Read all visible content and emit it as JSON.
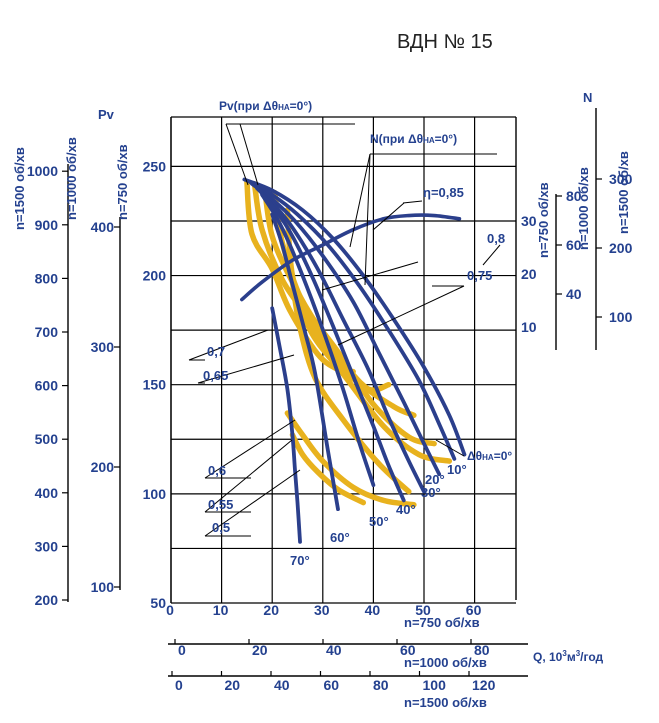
{
  "title": "ВДН № 15",
  "colors": {
    "pressure_curve": "#2b3f8c",
    "efficiency_curve": "#e8b21e",
    "text": "#24418f"
  },
  "chart_data": {
    "type": "line",
    "labels": {
      "pv": "Pv",
      "n": "N",
      "pv_curve": "Pv(при Δθ",
      "pv_curve_sub": "НА",
      "pv_curve_end": "=0°)",
      "n_curve": "N(при Δθ",
      "n_curve_sub": "НА",
      "n_curve_end": "=0°)",
      "vane_zero": "Δθ",
      "vane_zero_sub": "НА",
      "vane_zero_end": "=0°",
      "q_axis": "Q, 10",
      "q_axis_sup1": "3",
      "q_axis_mid": "м",
      "q_axis_sup2": "3",
      "q_axis_end": "/год"
    },
    "pressure_axes": [
      {
        "speed_label": "n=1500 об/хв",
        "ticks": [
          "200",
          "300",
          "400",
          "500",
          "600",
          "700",
          "800",
          "900",
          "1000"
        ]
      },
      {
        "speed_label": "n=1000 об/хв",
        "ticks": [
          "100",
          "200",
          "300",
          "400"
        ]
      },
      {
        "speed_label": "n=750 об/хв",
        "ticks": [
          "50",
          "100",
          "150",
          "200",
          "250"
        ]
      }
    ],
    "power_axes": [
      {
        "speed_label": "n=750 об/хв",
        "ticks": [
          "10",
          "20",
          "30"
        ]
      },
      {
        "speed_label": "n=1000 об/хв",
        "ticks": [
          "40",
          "60",
          "80"
        ]
      },
      {
        "speed_label": "n=1500 об/хв",
        "ticks": [
          "100",
          "200",
          "300"
        ]
      }
    ],
    "flow_axes": [
      {
        "speed_label": "n=750 об/хв",
        "ticks": [
          "0",
          "10",
          "20",
          "30",
          "40",
          "50",
          "60"
        ]
      },
      {
        "speed_label": "n=1000 об/хв",
        "ticks": [
          "0",
          "20",
          "40",
          "60",
          "80"
        ]
      },
      {
        "speed_label": "n=1500 об/хв",
        "ticks": [
          "0",
          "20",
          "40",
          "60",
          "80",
          "100",
          "120"
        ]
      }
    ],
    "xlim": [
      0,
      69
    ],
    "ylim": [
      50,
      275
    ],
    "vane_curves": [
      {
        "label": "0°",
        "x": [
          14.5,
          20,
          26,
          32,
          38,
          44,
          50,
          55,
          58
        ],
        "y": [
          244,
          239,
          230,
          217,
          200,
          180,
          158,
          136,
          118
        ]
      },
      {
        "label": "10°",
        "x": [
          15.5,
          20,
          25,
          31,
          37,
          43,
          49,
          53,
          56
        ],
        "y": [
          243,
          237,
          228,
          214,
          196,
          175,
          152,
          132,
          116
        ]
      },
      {
        "label": "20°",
        "x": [
          16,
          20,
          24.5,
          30,
          36,
          41,
          46,
          50,
          53
        ],
        "y": [
          242,
          235,
          225,
          209,
          188,
          165,
          142,
          123,
          109
        ]
      },
      {
        "label": "30°",
        "x": [
          17,
          20.5,
          24,
          29,
          34,
          39,
          43,
          47,
          50
        ],
        "y": [
          240,
          232,
          222,
          203,
          180,
          157,
          135,
          115,
          101
        ]
      },
      {
        "label": "40°",
        "x": [
          17.5,
          21,
          24,
          28,
          32,
          36,
          40,
          43,
          46
        ],
        "y": [
          239,
          229,
          218,
          199,
          177,
          154,
          131,
          113,
          97
        ]
      },
      {
        "label": "50°",
        "x": [
          18,
          21,
          23.5,
          27,
          30.5,
          34,
          37,
          40
        ],
        "y": [
          237,
          226,
          214,
          194,
          172,
          148,
          125,
          104
        ]
      },
      {
        "label": "60°",
        "x": [
          20,
          22,
          24,
          26.5,
          28.5,
          31,
          33
        ],
        "y": [
          228,
          214,
          196,
          174,
          155,
          120,
          93
        ]
      },
      {
        "label": "70°",
        "x": [
          20,
          21.5,
          23,
          24,
          24.5,
          25,
          25.5
        ],
        "y": [
          185,
          167,
          148,
          127,
          111,
          96,
          78
        ]
      }
    ],
    "power_curve": {
      "label": "",
      "x": [
        14,
        18,
        24,
        30,
        36,
        42,
        47,
        52,
        57
      ],
      "y": [
        189,
        197,
        207,
        214,
        221,
        226,
        227.5,
        227.5,
        226
      ]
    },
    "efficiency_curves": [
      {
        "label": "0,85",
        "x": [
          15,
          16,
          20,
          23.5,
          29,
          33,
          36
        ],
        "y": [
          243,
          219,
          203,
          184,
          164,
          157,
          156
        ]
      },
      {
        "label": "0,8",
        "x": [
          16.5,
          18,
          22,
          27,
          33,
          39,
          43
        ],
        "y": [
          242,
          221,
          198,
          181,
          160,
          148,
          150
        ]
      },
      {
        "label": "0,75",
        "x": [
          18.5,
          20,
          24,
          29,
          37,
          44,
          48
        ],
        "y": [
          240,
          218,
          197,
          177,
          152,
          140,
          136
        ]
      },
      {
        "label": "0,7",
        "x": [
          20.5,
          22,
          26,
          33,
          40,
          47,
          52
        ],
        "y": [
          238,
          215,
          188,
          165,
          141,
          126,
          123
        ]
      },
      {
        "label": "0,65",
        "x": [
          23,
          24,
          27.5,
          34,
          42,
          49,
          55
        ],
        "y": [
          230,
          200,
          175,
          155,
          131,
          118,
          115
        ]
      },
      {
        "label": "0,6",
        "x": [
          24,
          25.5,
          28.5,
          34,
          41,
          47
        ],
        "y": [
          197,
          176,
          153,
          134,
          114,
          101
        ]
      },
      {
        "label": "0,55",
        "x": [
          23,
          26,
          30,
          36,
          42,
          48
        ],
        "y": [
          137,
          127,
          115,
          103,
          97,
          95
        ]
      },
      {
        "label": "0,5",
        "x": [
          24,
          26,
          29,
          33,
          38
        ],
        "y": [
          127,
          118,
          110,
          102,
          96
        ]
      }
    ]
  }
}
